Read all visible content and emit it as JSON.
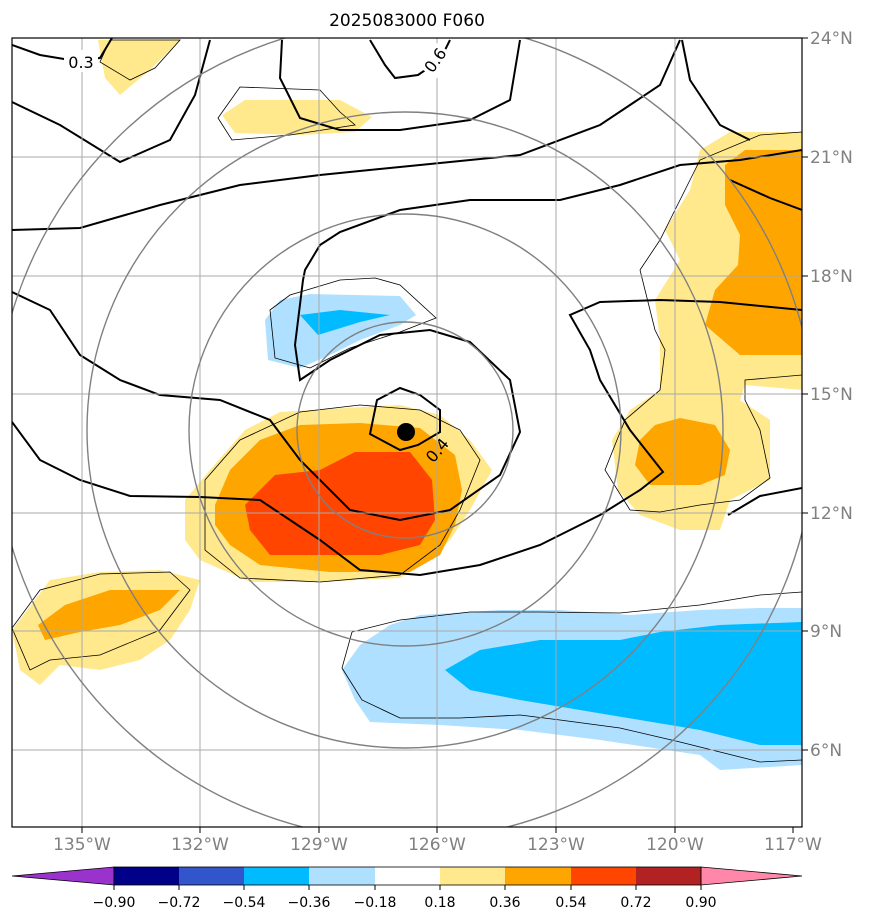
{
  "title": "2025083000 F060",
  "map": {
    "longitude_labels": [
      "135°W",
      "132°W",
      "129°W",
      "126°W",
      "123°W",
      "120°W",
      "117°W"
    ],
    "latitude_labels": [
      "6°N",
      "9°N",
      "12°N",
      "15°N",
      "18°N",
      "21°N",
      "24°N"
    ],
    "extent": {
      "lon": [
        -136.8,
        -116.8
      ],
      "lat": [
        4.2,
        24.0
      ]
    },
    "grid": true,
    "range_rings": true,
    "storm_center": {
      "lon": -126.8,
      "lat": 14.1
    },
    "contour_labels": [
      "0.3",
      "0.6",
      "0.4"
    ]
  },
  "colorbar": {
    "orientation": "horizontal",
    "extend": "both",
    "tick_labels": [
      "−0.90",
      "−0.72",
      "−0.54",
      "−0.36",
      "−0.18",
      "0.18",
      "0.36",
      "0.54",
      "0.72",
      "0.90"
    ],
    "levels": [
      -0.9,
      -0.72,
      -0.54,
      -0.36,
      -0.18,
      0.18,
      0.36,
      0.54,
      0.72,
      0.9
    ],
    "colors": [
      "#9933cc",
      "#000088",
      "#3355cc",
      "#00bbff",
      "#b0e0ff",
      "#ffffff",
      "#ffe98c",
      "#ffa500",
      "#ff4500",
      "#b22222",
      "#ff88aa"
    ]
  }
}
